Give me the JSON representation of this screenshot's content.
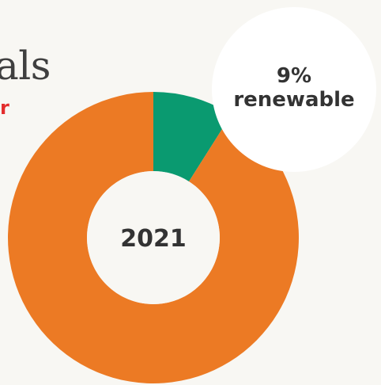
{
  "header": {
    "title_fragment": "als",
    "subtitle_fragment": "r"
  },
  "chart_data": {
    "type": "pie",
    "variant": "donut",
    "title": "als",
    "subtitle": "r",
    "center_label": "2021",
    "slices": [
      {
        "label": "renewable",
        "value": 9,
        "color": "#0a9a70"
      },
      {
        "label": "",
        "value": 91,
        "color": "#ec7a24"
      }
    ],
    "callout": {
      "percent_text": "9%",
      "label_text": "renewable"
    },
    "legend": "none",
    "grid": false
  },
  "colors": {
    "background": "#f8f7f3",
    "renewable": "#0a9a70",
    "other": "#ec7a24",
    "title": "#3f3f3f",
    "subtitle": "#e32d2d",
    "hole": "#f8f7f3",
    "callout_bubble": "#ffffff"
  }
}
